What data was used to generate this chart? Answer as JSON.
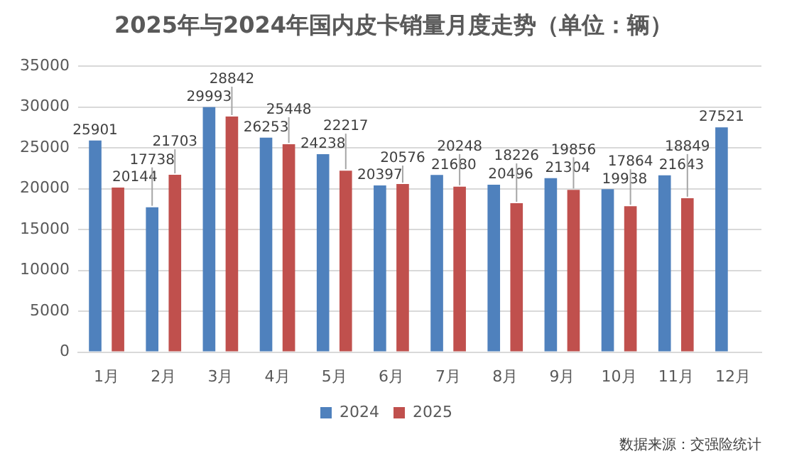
{
  "chart_data": {
    "type": "bar",
    "title": "2025年与2024年国内皮卡销量月度走势（单位：辆）",
    "categories": [
      "1月",
      "2月",
      "3月",
      "4月",
      "5月",
      "6月",
      "7月",
      "8月",
      "9月",
      "10月",
      "11月",
      "12月"
    ],
    "series": [
      {
        "name": "2024",
        "color": "#4f81bd",
        "values": [
          25901,
          17738,
          29993,
          26253,
          24238,
          20397,
          21680,
          20496,
          21304,
          19938,
          21643,
          27521
        ]
      },
      {
        "name": "2025",
        "color": "#c0504d",
        "values": [
          20144,
          21703,
          28842,
          25448,
          22217,
          20576,
          20248,
          18226,
          19856,
          17864,
          18849,
          null
        ]
      }
    ],
    "ylim": [
      0,
      35000
    ],
    "yticks": [
      0,
      5000,
      10000,
      15000,
      20000,
      25000,
      30000,
      35000
    ],
    "grid": "y",
    "legend": "bottom",
    "data_labels": true,
    "annotations": [
      "数据来源：交强险统计"
    ]
  }
}
